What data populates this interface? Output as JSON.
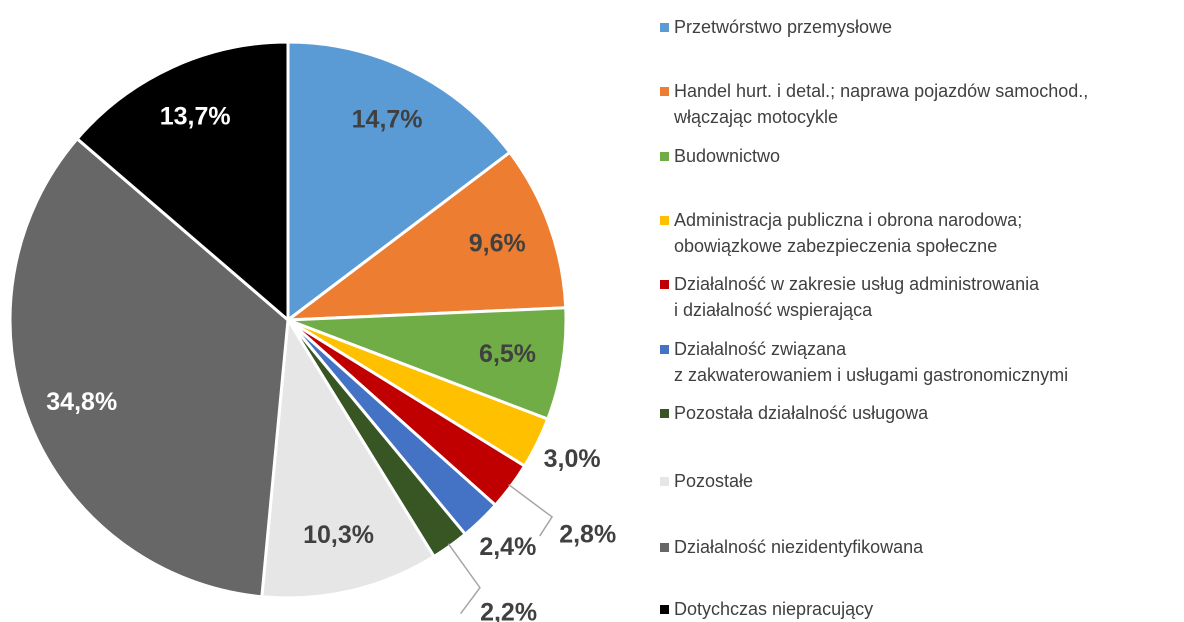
{
  "chart_data": {
    "type": "pie",
    "categories": [
      "Przetwórstwo przemysłowe",
      "Handel hurt. i detal.; naprawa pojazdów samochod.,\nwłączając motocykle",
      "Budownictwo",
      "Administracja publiczna i obrona narodowa;\nobowiązkowe zabezpieczenia społeczne",
      "Działalność w zakresie usług administrowania\ni działalność wspierająca",
      "Działalność związana\nz zakwaterowaniem i usługami gastronomicznymi",
      "Pozostała działalność usługowa",
      "Pozostałe",
      "Działalność niezidentyfikowana",
      "Dotychczas niepracujący"
    ],
    "values": [
      14.7,
      9.6,
      6.5,
      3.0,
      2.8,
      2.4,
      2.2,
      10.3,
      34.8,
      13.7
    ],
    "value_labels": [
      "14,7%",
      "9,6%",
      "6,5%",
      "3,0%",
      "2,8%",
      "2,4%",
      "2,2%",
      "10,3%",
      "34,8%",
      "13,7%"
    ],
    "colors": [
      "#5b9bd5",
      "#ed7d31",
      "#70ad47",
      "#ffc000",
      "#c00000",
      "#4472c4",
      "#375623",
      "#e7e6e6",
      "#676767",
      "#000000"
    ],
    "legend": "right"
  }
}
